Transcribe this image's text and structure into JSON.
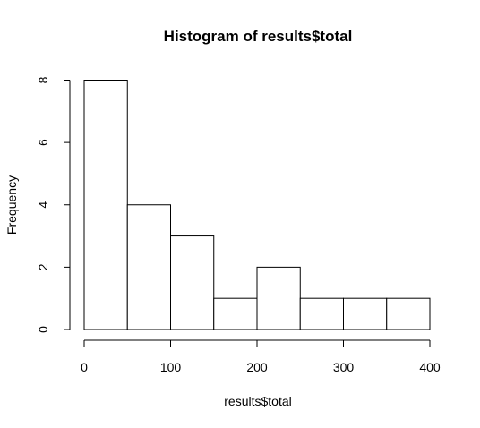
{
  "chart_data": {
    "type": "bar",
    "title": "Histogram of results$total",
    "xlabel": "results$total",
    "ylabel": "Frequency",
    "bins": [
      {
        "start": 0,
        "end": 50,
        "count": 8
      },
      {
        "start": 50,
        "end": 100,
        "count": 4
      },
      {
        "start": 100,
        "end": 150,
        "count": 3
      },
      {
        "start": 150,
        "end": 200,
        "count": 1
      },
      {
        "start": 200,
        "end": 250,
        "count": 2
      },
      {
        "start": 250,
        "end": 300,
        "count": 1
      },
      {
        "start": 300,
        "end": 350,
        "count": 1
      },
      {
        "start": 350,
        "end": 400,
        "count": 1
      }
    ],
    "xlim": [
      0,
      400
    ],
    "ylim": [
      0,
      8
    ],
    "xticks": [
      0,
      100,
      200,
      300,
      400
    ],
    "yticks": [
      0,
      2,
      4,
      6,
      8
    ],
    "grid": false,
    "bar_fill": "#ffffff",
    "bar_stroke": "#000000"
  }
}
